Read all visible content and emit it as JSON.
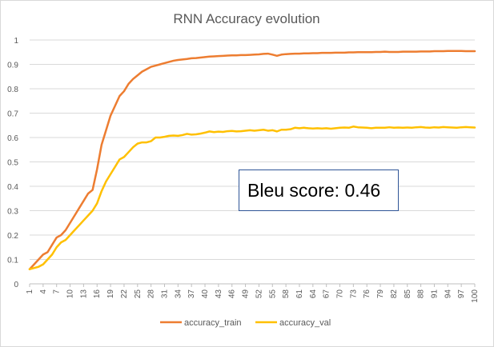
{
  "chart_data": {
    "type": "line",
    "title": "RNN Accuracy evolution",
    "xlabel": "",
    "ylabel": "",
    "x": [
      1,
      2,
      3,
      4,
      5,
      6,
      7,
      8,
      9,
      10,
      11,
      12,
      13,
      14,
      15,
      16,
      17,
      18,
      19,
      20,
      21,
      22,
      23,
      24,
      25,
      26,
      27,
      28,
      29,
      30,
      31,
      32,
      33,
      34,
      35,
      36,
      37,
      38,
      39,
      40,
      41,
      42,
      43,
      44,
      45,
      46,
      47,
      48,
      49,
      50,
      51,
      52,
      53,
      54,
      55,
      56,
      57,
      58,
      59,
      60,
      61,
      62,
      63,
      64,
      65,
      66,
      67,
      68,
      69,
      70,
      71,
      72,
      73,
      74,
      75,
      76,
      77,
      78,
      79,
      80,
      81,
      82,
      83,
      84,
      85,
      86,
      87,
      88,
      89,
      90,
      91,
      92,
      93,
      94,
      95,
      96,
      97,
      98,
      99,
      100
    ],
    "x_tick_labels": [
      "1",
      "4",
      "7",
      "10",
      "13",
      "16",
      "19",
      "22",
      "25",
      "28",
      "31",
      "34",
      "37",
      "40",
      "43",
      "46",
      "49",
      "52",
      "55",
      "58",
      "61",
      "64",
      "67",
      "70",
      "73",
      "76",
      "79",
      "82",
      "85",
      "88",
      "91",
      "94",
      "97",
      "100"
    ],
    "ylim": [
      0,
      1
    ],
    "y_ticks": [
      "0",
      "0.1",
      "0.2",
      "0.3",
      "0.4",
      "0.5",
      "0.6",
      "0.7",
      "0.8",
      "0.9",
      "1"
    ],
    "legend_position": "bottom",
    "series": [
      {
        "name": "accuracy_train",
        "color": "#ed7d31",
        "values": [
          0.06,
          0.08,
          0.1,
          0.12,
          0.13,
          0.16,
          0.19,
          0.2,
          0.22,
          0.25,
          0.28,
          0.31,
          0.34,
          0.37,
          0.385,
          0.47,
          0.57,
          0.63,
          0.69,
          0.73,
          0.77,
          0.79,
          0.82,
          0.84,
          0.855,
          0.87,
          0.88,
          0.89,
          0.895,
          0.9,
          0.905,
          0.91,
          0.915,
          0.918,
          0.92,
          0.922,
          0.925,
          0.926,
          0.928,
          0.93,
          0.932,
          0.933,
          0.934,
          0.935,
          0.936,
          0.937,
          0.937,
          0.938,
          0.938,
          0.939,
          0.94,
          0.941,
          0.943,
          0.944,
          0.94,
          0.935,
          0.94,
          0.942,
          0.943,
          0.944,
          0.944,
          0.945,
          0.945,
          0.946,
          0.946,
          0.947,
          0.947,
          0.947,
          0.948,
          0.948,
          0.948,
          0.949,
          0.949,
          0.95,
          0.95,
          0.95,
          0.95,
          0.951,
          0.951,
          0.952,
          0.951,
          0.951,
          0.951,
          0.952,
          0.952,
          0.952,
          0.952,
          0.953,
          0.953,
          0.953,
          0.954,
          0.954,
          0.954,
          0.955,
          0.955,
          0.955,
          0.955,
          0.954,
          0.954,
          0.954
        ]
      },
      {
        "name": "accuracy_val",
        "color": "#ffc000",
        "values": [
          0.06,
          0.065,
          0.07,
          0.08,
          0.1,
          0.12,
          0.15,
          0.17,
          0.18,
          0.2,
          0.22,
          0.24,
          0.26,
          0.28,
          0.3,
          0.33,
          0.38,
          0.42,
          0.45,
          0.48,
          0.51,
          0.52,
          0.54,
          0.56,
          0.575,
          0.58,
          0.58,
          0.585,
          0.6,
          0.6,
          0.603,
          0.607,
          0.608,
          0.607,
          0.61,
          0.615,
          0.612,
          0.613,
          0.616,
          0.62,
          0.625,
          0.622,
          0.624,
          0.623,
          0.626,
          0.627,
          0.625,
          0.626,
          0.628,
          0.63,
          0.628,
          0.63,
          0.632,
          0.628,
          0.63,
          0.625,
          0.632,
          0.632,
          0.634,
          0.64,
          0.638,
          0.64,
          0.638,
          0.637,
          0.638,
          0.637,
          0.638,
          0.636,
          0.638,
          0.64,
          0.641,
          0.64,
          0.645,
          0.642,
          0.641,
          0.64,
          0.638,
          0.64,
          0.64,
          0.64,
          0.642,
          0.64,
          0.641,
          0.64,
          0.641,
          0.64,
          0.642,
          0.643,
          0.641,
          0.64,
          0.642,
          0.641,
          0.643,
          0.642,
          0.641,
          0.64,
          0.642,
          0.643,
          0.642,
          0.641
        ]
      }
    ],
    "annotation": "Bleu score: 0.46",
    "gridlines": true
  }
}
